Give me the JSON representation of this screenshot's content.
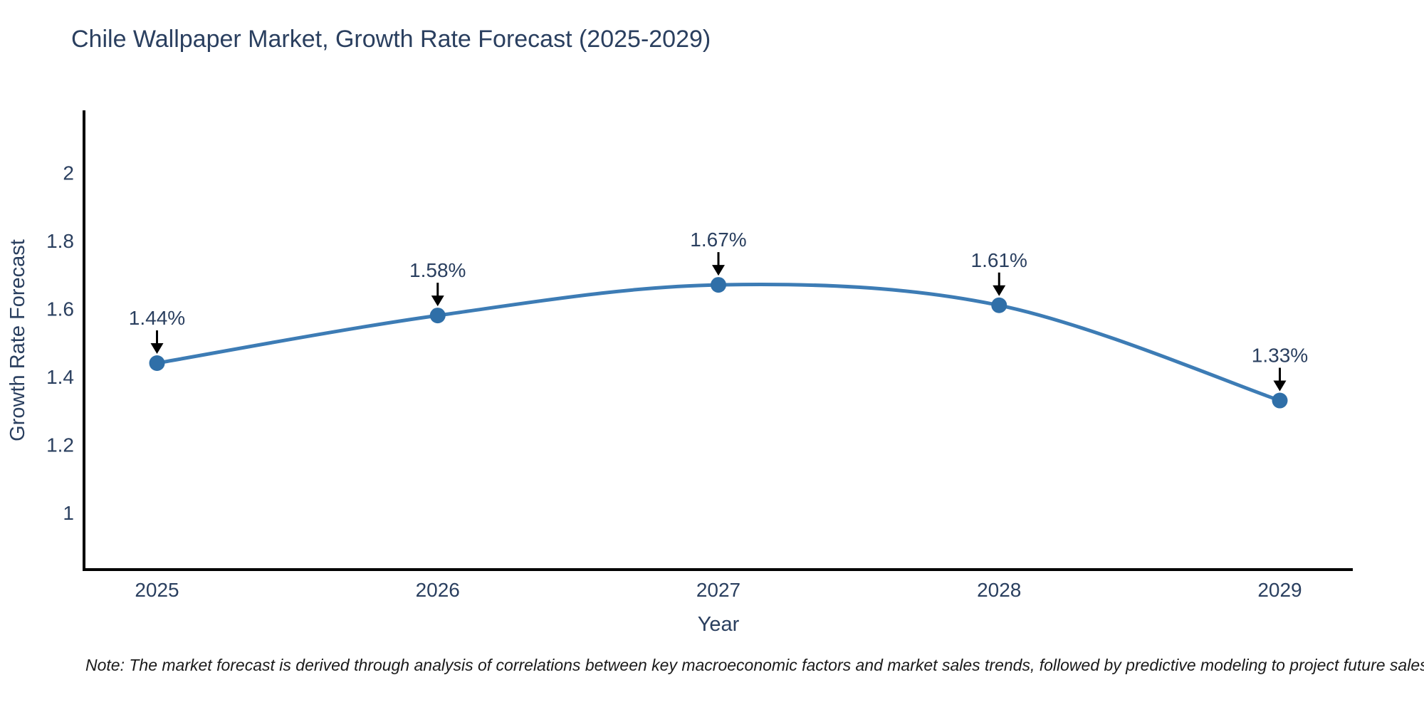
{
  "header": {
    "title": "Chile Wallpaper Market, Growth Rate Forecast (2025-2029)"
  },
  "chart_data": {
    "type": "line",
    "line_shape": "spline",
    "x": [
      2025,
      2026,
      2027,
      2028,
      2029
    ],
    "xtick_labels": [
      "2025",
      "2026",
      "2027",
      "2028",
      "2029"
    ],
    "series": [
      {
        "name": "Growth Rate Forecast",
        "values": [
          1.44,
          1.58,
          1.67,
          1.61,
          1.33
        ]
      }
    ],
    "point_labels": [
      "1.44%",
      "1.58%",
      "1.67%",
      "1.61%",
      "1.33%"
    ],
    "title": "Chile Wallpaper Market, Growth Rate Forecast (2025-2029)",
    "xlabel": "Year",
    "ylabel": "Growth Rate Forecast",
    "xlim": [
      2024.74,
      2029.26
    ],
    "ylim": [
      0.833,
      2.183
    ],
    "yticks": [
      1,
      1.2,
      1.4,
      1.6,
      1.8,
      2
    ],
    "ytick_labels": [
      "1",
      "1.2",
      "1.4",
      "1.6",
      "1.8",
      "2"
    ],
    "grid": false,
    "legend": "none",
    "colors": {
      "line": "#3d7cb5",
      "marker": "#2f6fa8",
      "arrow": "#000000",
      "text": "#2a3f5f",
      "axis": "#000000",
      "note": "#1a1a1a"
    }
  },
  "footer": {
    "note": "Note: The market forecast is derived through analysis of correlations between key macroeconomic factors and market sales trends, followed by predictive modeling to project future sales"
  }
}
